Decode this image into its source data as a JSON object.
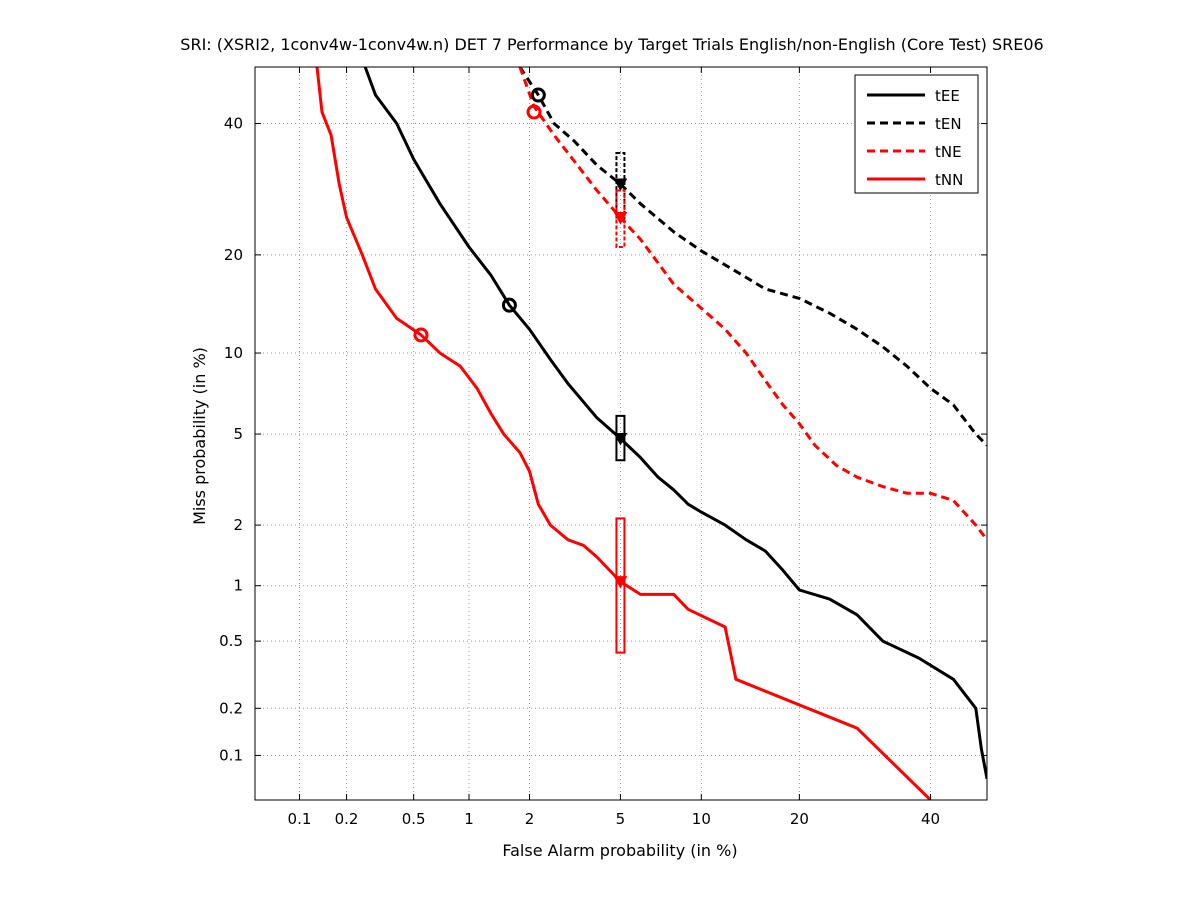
{
  "chart_data": {
    "type": "line",
    "title": "SRI: (XSRI2, 1conv4w-1conv4w.n) DET 7 Performance by Target Trials English/non-English (Core Test) SRE06",
    "xlabel": "False Alarm probability (in %)",
    "ylabel": "Miss probability (in %)",
    "xscale": "normal-deviate",
    "yscale": "normal-deviate",
    "xlim": [
      0.05,
      50
    ],
    "ylim": [
      0.05,
      50
    ],
    "xticks": [
      0.1,
      0.2,
      0.5,
      1,
      2,
      5,
      10,
      20,
      40
    ],
    "xtick_labels": [
      "0.1",
      "0.2",
      "0.5",
      "1",
      "2",
      "5",
      "10",
      "20",
      "40"
    ],
    "yticks": [
      0.1,
      0.2,
      0.5,
      1,
      2,
      5,
      10,
      20,
      40
    ],
    "ytick_labels": [
      "0.1",
      "0.2",
      "0.5",
      "1",
      "2",
      "5",
      "10",
      "20",
      "40"
    ],
    "grid": true,
    "legend_position": "top-right",
    "series": [
      {
        "name": "tEE",
        "color": "#000000",
        "style": "solid",
        "points": [
          [
            0.26,
            50
          ],
          [
            0.3,
            45
          ],
          [
            0.4,
            40
          ],
          [
            0.5,
            34
          ],
          [
            0.7,
            27
          ],
          [
            1.0,
            21
          ],
          [
            1.3,
            17.5
          ],
          [
            1.6,
            14.3
          ],
          [
            2.0,
            12
          ],
          [
            2.5,
            9.5
          ],
          [
            3.0,
            7.8
          ],
          [
            4.0,
            5.8
          ],
          [
            5.0,
            4.8
          ],
          [
            6.0,
            4.0
          ],
          [
            7.0,
            3.3
          ],
          [
            8.0,
            2.9
          ],
          [
            9.0,
            2.5
          ],
          [
            10.0,
            2.3
          ],
          [
            12.0,
            2.0
          ],
          [
            14.0,
            1.7
          ],
          [
            16.0,
            1.5
          ],
          [
            18.0,
            1.2
          ],
          [
            20.0,
            0.95
          ],
          [
            24.0,
            0.85
          ],
          [
            28.0,
            0.7
          ],
          [
            32.0,
            0.5
          ],
          [
            38.0,
            0.4
          ],
          [
            44.0,
            0.3
          ],
          [
            48.0,
            0.2
          ],
          [
            49.0,
            0.11
          ],
          [
            50.0,
            0.07
          ]
        ],
        "min_dcf": [
          1.6,
          14.3
        ],
        "act_dcf": [
          5.0,
          4.8
        ],
        "conf_box": [
          5.0,
          3.9,
          5.9
        ]
      },
      {
        "name": "tEN",
        "color": "#000000",
        "style": "dashed",
        "points": [
          [
            1.8,
            50
          ],
          [
            2.2,
            45
          ],
          [
            2.6,
            40
          ],
          [
            3.2,
            37
          ],
          [
            4.0,
            33
          ],
          [
            5.0,
            30
          ],
          [
            6.0,
            27
          ],
          [
            8.0,
            23
          ],
          [
            10.0,
            20.5
          ],
          [
            13.0,
            18
          ],
          [
            16.0,
            16
          ],
          [
            20.0,
            15
          ],
          [
            24.0,
            13.5
          ],
          [
            28.0,
            12
          ],
          [
            32.0,
            10.5
          ],
          [
            36.0,
            9
          ],
          [
            40.0,
            7.5
          ],
          [
            44.0,
            6.5
          ],
          [
            48.0,
            5
          ],
          [
            50.0,
            4.5
          ]
        ],
        "min_dcf": [
          2.2,
          45
        ],
        "act_dcf": [
          5.0,
          30
        ],
        "conf_box": [
          5.0,
          25.0,
          35.0
        ]
      },
      {
        "name": "tNE",
        "color": "#ff0000",
        "style": "dashed",
        "points": [
          [
            1.8,
            50
          ],
          [
            2.1,
            43
          ],
          [
            2.6,
            38
          ],
          [
            3.3,
            33
          ],
          [
            4.0,
            29
          ],
          [
            5.0,
            25
          ],
          [
            6.0,
            22
          ],
          [
            7.0,
            19
          ],
          [
            8.0,
            16.5
          ],
          [
            10.0,
            14
          ],
          [
            12.0,
            12
          ],
          [
            14.0,
            10
          ],
          [
            16.0,
            8
          ],
          [
            18.0,
            6.5
          ],
          [
            20.0,
            5.5
          ],
          [
            22.0,
            4.5
          ],
          [
            25.0,
            3.7
          ],
          [
            28.0,
            3.3
          ],
          [
            32.0,
            3.0
          ],
          [
            36.0,
            2.8
          ],
          [
            40.0,
            2.8
          ],
          [
            44.0,
            2.6
          ],
          [
            48.0,
            2.0
          ],
          [
            50.0,
            1.7
          ]
        ],
        "min_dcf": [
          2.1,
          42
        ],
        "act_dcf": [
          5.0,
          25
        ],
        "conf_box": [
          5.0,
          21.0,
          29.0
        ]
      },
      {
        "name": "tNN",
        "color": "#ff0000",
        "style": "solid",
        "points": [
          [
            0.13,
            50
          ],
          [
            0.14,
            42
          ],
          [
            0.16,
            38
          ],
          [
            0.18,
            30
          ],
          [
            0.2,
            25
          ],
          [
            0.25,
            20
          ],
          [
            0.3,
            16
          ],
          [
            0.4,
            13
          ],
          [
            0.55,
            11.5
          ],
          [
            0.7,
            10
          ],
          [
            0.9,
            9
          ],
          [
            1.1,
            7.5
          ],
          [
            1.3,
            6
          ],
          [
            1.5,
            5
          ],
          [
            1.8,
            4.2
          ],
          [
            2.0,
            3.5
          ],
          [
            2.2,
            2.5
          ],
          [
            2.5,
            2
          ],
          [
            3.0,
            1.7
          ],
          [
            3.5,
            1.6
          ],
          [
            4.0,
            1.4
          ],
          [
            5.0,
            1.05
          ],
          [
            6.0,
            0.9
          ],
          [
            8.0,
            0.9
          ],
          [
            9.0,
            0.75
          ],
          [
            12.0,
            0.6
          ],
          [
            13.0,
            0.3
          ],
          [
            28.0,
            0.15
          ],
          [
            40.0,
            0.05
          ]
        ],
        "min_dcf": [
          0.55,
          11.5
        ],
        "act_dcf": [
          5.0,
          1.05
        ],
        "conf_box": [
          5.0,
          0.43,
          2.15
        ]
      }
    ]
  }
}
